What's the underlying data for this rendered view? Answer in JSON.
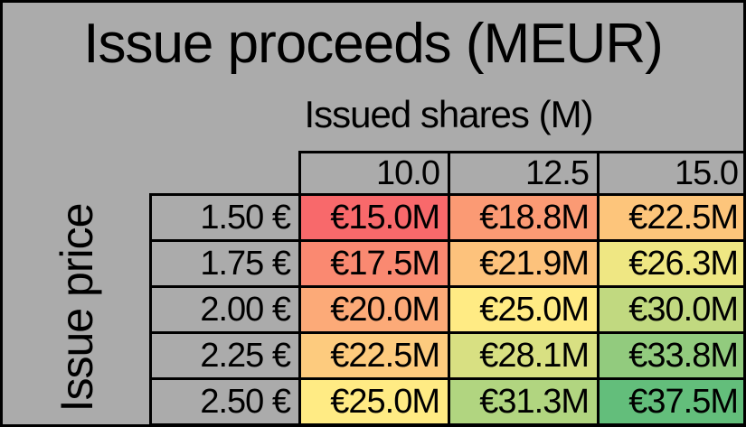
{
  "title": "Issue proceeds (MEUR)",
  "columns_axis_title": "Issued shares (M)",
  "rows_axis_title": "Issue price",
  "colors": {
    "page_background": "#ABABAB",
    "border": "#000000",
    "text": "#000000",
    "scale_min": "#F8696B",
    "scale_mid": "#FFEB84",
    "scale_max": "#63BE7B"
  },
  "table": {
    "col_headers": [
      "10.0",
      "12.5",
      "15.0"
    ],
    "rows": [
      {
        "label": "1.50 €",
        "cells": [
          {
            "text": "€15.0M",
            "bg": "#F8696B"
          },
          {
            "text": "€18.8M",
            "bg": "#FB9A74"
          },
          {
            "text": "€22.5M",
            "bg": "#FDC57B"
          }
        ]
      },
      {
        "label": "1.75 €",
        "cells": [
          {
            "text": "€17.5M",
            "bg": "#FA8971"
          },
          {
            "text": "€21.9M",
            "bg": "#FDC27C"
          },
          {
            "text": "€26.3M",
            "bg": "#EFE783"
          }
        ]
      },
      {
        "label": "2.00 €",
        "cells": [
          {
            "text": "€20.0M",
            "bg": "#FCAA78"
          },
          {
            "text": "€25.0M",
            "bg": "#FFEB84"
          },
          {
            "text": "€30.0M",
            "bg": "#C1D980"
          }
        ]
      },
      {
        "label": "2.25 €",
        "cells": [
          {
            "text": "€22.5M",
            "bg": "#FDCB7E"
          },
          {
            "text": "€28.1M",
            "bg": "#D8E082"
          },
          {
            "text": "€33.8M",
            "bg": "#92CB7E"
          }
        ]
      },
      {
        "label": "2.50 €",
        "cells": [
          {
            "text": "€25.0M",
            "bg": "#FFEB84"
          },
          {
            "text": "€31.3M",
            "bg": "#B1D580"
          },
          {
            "text": "€37.5M",
            "bg": "#63BE7B"
          }
        ]
      }
    ]
  },
  "chart_data": {
    "type": "heatmap",
    "title": "Issue proceeds (MEUR)",
    "xlabel": "Issued shares (M)",
    "ylabel": "Issue price",
    "x": [
      10.0,
      12.5,
      15.0
    ],
    "y": [
      1.5,
      1.75,
      2.0,
      2.25,
      2.5
    ],
    "y_labels": [
      "1.50 €",
      "1.75 €",
      "2.00 €",
      "2.25 €",
      "2.50 €"
    ],
    "values": [
      [
        15.0,
        18.8,
        22.5
      ],
      [
        17.5,
        21.9,
        26.3
      ],
      [
        20.0,
        25.0,
        30.0
      ],
      [
        22.5,
        28.1,
        33.8
      ],
      [
        25.0,
        31.3,
        37.5
      ]
    ],
    "cell_labels": [
      [
        "€15.0M",
        "€18.8M",
        "€22.5M"
      ],
      [
        "€17.5M",
        "€21.9M",
        "€26.3M"
      ],
      [
        "€20.0M",
        "€25.0M",
        "€30.0M"
      ],
      [
        "€22.5M",
        "€28.1M",
        "€33.8M"
      ],
      [
        "€25.0M",
        "€31.3M",
        "€37.5M"
      ]
    ],
    "colorscale": {
      "min_value": 15.0,
      "min_color": "#F8696B",
      "mid_value": 25.0,
      "mid_color": "#FFEB84",
      "max_value": 37.5,
      "max_color": "#63BE7B"
    },
    "legend_position": "none",
    "grid": true
  }
}
